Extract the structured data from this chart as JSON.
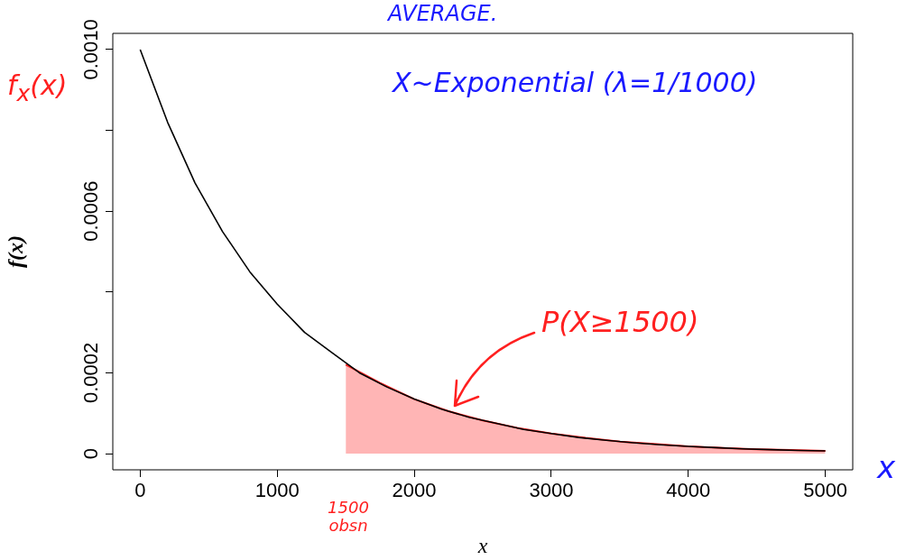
{
  "chart_data": {
    "type": "line",
    "xlabel": "x",
    "ylabel": "f(x)",
    "xlim": [
      -200,
      5200
    ],
    "xticks": [
      0,
      1000,
      2000,
      3000,
      4000,
      5000
    ],
    "ylim": [
      -4e-05,
      0.00104
    ],
    "yticks": [
      0,
      0.0002,
      {
        "value": 0.0004,
        "label": null
      },
      0.0006,
      {
        "value": 0.0008,
        "label": null
      },
      {
        "value": 0.001,
        "label": "0.0010"
      }
    ],
    "grid": false,
    "legend": false,
    "marker": "none",
    "line_style": "solid",
    "series": [
      {
        "color": "#000000",
        "x": [
          0,
          200,
          400,
          600,
          800,
          1000,
          1200,
          1400,
          1600,
          1800,
          2000,
          2200,
          2400,
          2600,
          2800,
          3000,
          3200,
          3400,
          3600,
          3800,
          4000,
          4200,
          4400,
          4600,
          4800,
          5000
        ],
        "values": [
          0.001,
          0.00082,
          0.00067,
          0.00055,
          0.00045,
          0.00037,
          0.0003,
          0.00025,
          0.0002,
          0.000165,
          0.000135,
          0.00011,
          9e-05,
          7.5e-05,
          6e-05,
          5e-05,
          4e-05,
          3.3e-05,
          2.7e-05,
          2.2e-05,
          1.8e-05,
          1.5e-05,
          1.2e-05,
          1e-05,
          8e-06,
          7e-06
        ]
      },
      {
        "type": "area",
        "color": "#ff2020",
        "x": [
          1500,
          1750,
          2000,
          2250,
          2500,
          2750,
          3000,
          3250,
          3500,
          3750,
          4000,
          4250,
          4500,
          4750,
          5000
        ],
        "values": [
          0.00022,
          0.000175,
          0.000135,
          0.000105,
          8.2e-05,
          6.4e-05,
          5e-05,
          3.9e-05,
          3e-05,
          2.4e-05,
          1.8e-05,
          1.4e-05,
          1.1e-05,
          9e-06,
          7e-06
        ]
      }
    ],
    "annotations": [
      "AVERAGE.",
      "f$_{x}$(x)",
      "X~Exponential (λ=1/1000)",
      "P(X≥1500)",
      "1500 obsn",
      "x"
    ]
  }
}
